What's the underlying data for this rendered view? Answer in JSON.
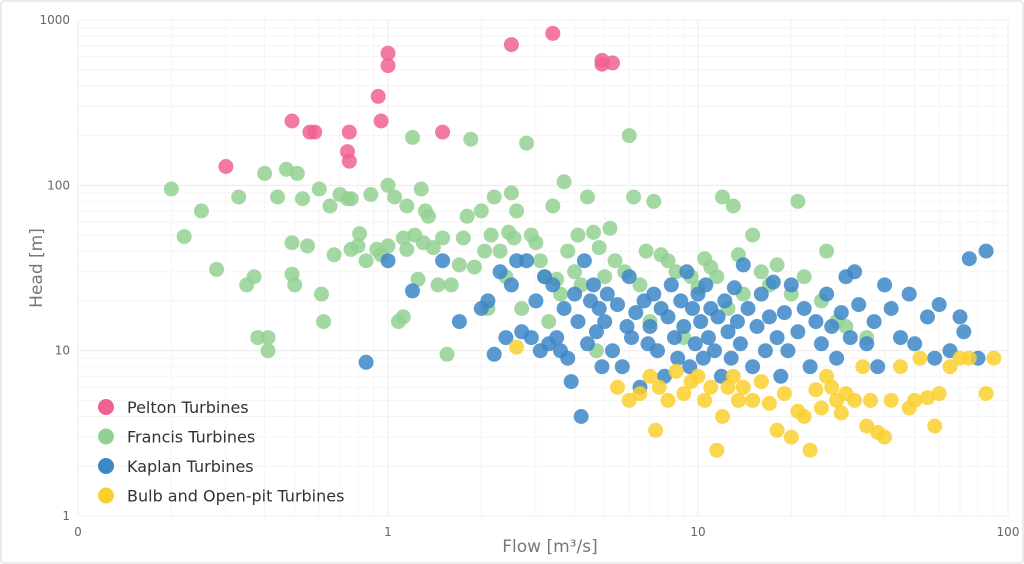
{
  "chart_data": {
    "type": "scatter",
    "xlabel": "Flow [m³/s]",
    "ylabel": "Head [m]",
    "x_scale": "log",
    "y_scale": "log",
    "xlim": [
      0.1,
      100
    ],
    "ylim": [
      1,
      1000
    ],
    "x_ticks": [
      {
        "value": 0.1,
        "label": "0"
      },
      {
        "value": 1,
        "label": "1"
      },
      {
        "value": 10,
        "label": "10"
      },
      {
        "value": 100,
        "label": "100"
      }
    ],
    "y_ticks": [
      {
        "value": 1,
        "label": "1"
      },
      {
        "value": 10,
        "label": "10"
      },
      {
        "value": 100,
        "label": "100"
      },
      {
        "value": 1000,
        "label": "1000"
      }
    ],
    "grid": true,
    "legend_position": "bottom-left",
    "series": [
      {
        "name": "Pelton Turbines",
        "color": "#f06292",
        "points": [
          [
            0.3,
            130
          ],
          [
            0.49,
            245
          ],
          [
            0.56,
            210
          ],
          [
            0.58,
            210
          ],
          [
            0.74,
            160
          ],
          [
            0.75,
            140
          ],
          [
            0.75,
            210
          ],
          [
            0.93,
            345
          ],
          [
            0.95,
            245
          ],
          [
            1.0,
            630
          ],
          [
            1.0,
            530
          ],
          [
            1.5,
            210
          ],
          [
            2.5,
            710
          ],
          [
            3.4,
            830
          ],
          [
            4.9,
            540
          ],
          [
            4.9,
            570
          ],
          [
            5.3,
            550
          ]
        ]
      },
      {
        "name": "Francis Turbines",
        "color": "#93d193",
        "points": [
          [
            0.2,
            95
          ],
          [
            0.22,
            49
          ],
          [
            0.25,
            70
          ],
          [
            0.28,
            31
          ],
          [
            0.33,
            85
          ],
          [
            0.35,
            25
          ],
          [
            0.37,
            28
          ],
          [
            0.38,
            12
          ],
          [
            0.4,
            118
          ],
          [
            0.41,
            10
          ],
          [
            0.41,
            12
          ],
          [
            0.44,
            85
          ],
          [
            0.47,
            125
          ],
          [
            0.49,
            29
          ],
          [
            0.49,
            45
          ],
          [
            0.5,
            25
          ],
          [
            0.51,
            118
          ],
          [
            0.53,
            83
          ],
          [
            0.55,
            43
          ],
          [
            0.6,
            95
          ],
          [
            0.61,
            22
          ],
          [
            0.62,
            15
          ],
          [
            0.65,
            75
          ],
          [
            0.67,
            38
          ],
          [
            0.7,
            88
          ],
          [
            0.74,
            83
          ],
          [
            0.76,
            83
          ],
          [
            0.76,
            41
          ],
          [
            0.8,
            43
          ],
          [
            0.81,
            51
          ],
          [
            0.85,
            35
          ],
          [
            0.88,
            88
          ],
          [
            0.92,
            41
          ],
          [
            0.95,
            38
          ],
          [
            1.0,
            100
          ],
          [
            1.0,
            43
          ],
          [
            1.05,
            85
          ],
          [
            1.08,
            15
          ],
          [
            1.12,
            16
          ],
          [
            1.12,
            48
          ],
          [
            1.15,
            75
          ],
          [
            1.15,
            41
          ],
          [
            1.2,
            195
          ],
          [
            1.22,
            50
          ],
          [
            1.25,
            27
          ],
          [
            1.28,
            95
          ],
          [
            1.3,
            45
          ],
          [
            1.32,
            70
          ],
          [
            1.35,
            65
          ],
          [
            1.4,
            42
          ],
          [
            1.45,
            25
          ],
          [
            1.5,
            48
          ],
          [
            1.55,
            9.5
          ],
          [
            1.6,
            25
          ],
          [
            1.7,
            33
          ],
          [
            1.75,
            48
          ],
          [
            1.8,
            65
          ],
          [
            1.85,
            190
          ],
          [
            1.9,
            32
          ],
          [
            2.0,
            70
          ],
          [
            2.05,
            40
          ],
          [
            2.1,
            18
          ],
          [
            2.15,
            50
          ],
          [
            2.2,
            85
          ],
          [
            2.3,
            40
          ],
          [
            2.4,
            28
          ],
          [
            2.45,
            52
          ],
          [
            2.5,
            90
          ],
          [
            2.55,
            48
          ],
          [
            2.6,
            70
          ],
          [
            2.7,
            18
          ],
          [
            2.8,
            180
          ],
          [
            2.9,
            50
          ],
          [
            3.0,
            45
          ],
          [
            3.1,
            35
          ],
          [
            3.2,
            28
          ],
          [
            3.3,
            15
          ],
          [
            3.4,
            75
          ],
          [
            3.5,
            27
          ],
          [
            3.6,
            22
          ],
          [
            3.7,
            105
          ],
          [
            3.8,
            40
          ],
          [
            4.0,
            30
          ],
          [
            4.1,
            50
          ],
          [
            4.2,
            25
          ],
          [
            4.4,
            85
          ],
          [
            4.6,
            52
          ],
          [
            4.7,
            10
          ],
          [
            4.8,
            42
          ],
          [
            5.0,
            28
          ],
          [
            5.2,
            55
          ],
          [
            5.4,
            35
          ],
          [
            5.8,
            30
          ],
          [
            6.0,
            200
          ],
          [
            6.2,
            85
          ],
          [
            6.5,
            25
          ],
          [
            6.8,
            40
          ],
          [
            7.0,
            15
          ],
          [
            7.2,
            80
          ],
          [
            7.6,
            38
          ],
          [
            8.0,
            35
          ],
          [
            8.5,
            30
          ],
          [
            9.0,
            12
          ],
          [
            9.5,
            28
          ],
          [
            10.0,
            24
          ],
          [
            10.5,
            36
          ],
          [
            11.0,
            32
          ],
          [
            11.5,
            28
          ],
          [
            12.0,
            85
          ],
          [
            12.5,
            18
          ],
          [
            13.0,
            75
          ],
          [
            13.5,
            38
          ],
          [
            14.0,
            22
          ],
          [
            15.0,
            50
          ],
          [
            16.0,
            30
          ],
          [
            17.0,
            25
          ],
          [
            18.0,
            33
          ],
          [
            20.0,
            22
          ],
          [
            21.0,
            80
          ],
          [
            22.0,
            28
          ],
          [
            25.0,
            20
          ],
          [
            26.0,
            40
          ],
          [
            28.0,
            15
          ],
          [
            30.0,
            14
          ],
          [
            35.0,
            12
          ]
        ]
      },
      {
        "name": "Kaplan Turbines",
        "color": "#3d87c7",
        "points": [
          [
            0.85,
            8.5
          ],
          [
            1.0,
            35
          ],
          [
            1.2,
            23
          ],
          [
            1.5,
            35
          ],
          [
            1.7,
            15
          ],
          [
            2.0,
            18
          ],
          [
            2.1,
            20
          ],
          [
            2.2,
            9.5
          ],
          [
            2.3,
            30
          ],
          [
            2.4,
            12
          ],
          [
            2.5,
            25
          ],
          [
            2.6,
            35
          ],
          [
            2.7,
            13
          ],
          [
            2.8,
            35
          ],
          [
            2.9,
            12
          ],
          [
            3.0,
            20
          ],
          [
            3.1,
            10
          ],
          [
            3.2,
            28
          ],
          [
            3.3,
            11
          ],
          [
            3.4,
            25
          ],
          [
            3.5,
            12
          ],
          [
            3.6,
            10
          ],
          [
            3.7,
            18
          ],
          [
            3.8,
            9
          ],
          [
            3.9,
            6.5
          ],
          [
            4.0,
            22
          ],
          [
            4.1,
            15
          ],
          [
            4.2,
            4
          ],
          [
            4.3,
            35
          ],
          [
            4.4,
            11
          ],
          [
            4.5,
            20
          ],
          [
            4.6,
            25
          ],
          [
            4.7,
            13
          ],
          [
            4.8,
            18
          ],
          [
            4.9,
            8
          ],
          [
            5.0,
            15
          ],
          [
            5.1,
            22
          ],
          [
            5.3,
            10
          ],
          [
            5.5,
            19
          ],
          [
            5.7,
            8
          ],
          [
            5.9,
            14
          ],
          [
            6.0,
            28
          ],
          [
            6.1,
            12
          ],
          [
            6.3,
            17
          ],
          [
            6.5,
            6
          ],
          [
            6.7,
            20
          ],
          [
            6.9,
            11
          ],
          [
            7.0,
            14
          ],
          [
            7.2,
            22
          ],
          [
            7.4,
            10
          ],
          [
            7.6,
            18
          ],
          [
            7.8,
            7
          ],
          [
            8.0,
            16
          ],
          [
            8.2,
            25
          ],
          [
            8.4,
            12
          ],
          [
            8.6,
            9
          ],
          [
            8.8,
            20
          ],
          [
            9.0,
            14
          ],
          [
            9.2,
            30
          ],
          [
            9.4,
            8
          ],
          [
            9.6,
            18
          ],
          [
            9.8,
            11
          ],
          [
            10.0,
            22
          ],
          [
            10.2,
            15
          ],
          [
            10.4,
            9
          ],
          [
            10.6,
            25
          ],
          [
            10.8,
            12
          ],
          [
            11.0,
            18
          ],
          [
            11.3,
            10
          ],
          [
            11.6,
            16
          ],
          [
            11.9,
            7
          ],
          [
            12.2,
            20
          ],
          [
            12.5,
            13
          ],
          [
            12.8,
            9
          ],
          [
            13.1,
            24
          ],
          [
            13.4,
            15
          ],
          [
            13.7,
            11
          ],
          [
            14.0,
            33
          ],
          [
            14.5,
            18
          ],
          [
            15.0,
            8
          ],
          [
            15.5,
            14
          ],
          [
            16.0,
            22
          ],
          [
            16.5,
            10
          ],
          [
            17.0,
            16
          ],
          [
            17.5,
            26
          ],
          [
            18.0,
            12
          ],
          [
            18.5,
            7
          ],
          [
            19.0,
            17
          ],
          [
            19.5,
            10
          ],
          [
            20.0,
            25
          ],
          [
            21.0,
            13
          ],
          [
            22.0,
            18
          ],
          [
            23.0,
            8
          ],
          [
            24.0,
            15
          ],
          [
            25.0,
            11
          ],
          [
            26.0,
            22
          ],
          [
            27.0,
            14
          ],
          [
            28.0,
            9
          ],
          [
            29.0,
            17
          ],
          [
            30.0,
            28
          ],
          [
            31.0,
            12
          ],
          [
            32.0,
            30
          ],
          [
            33.0,
            19
          ],
          [
            35.0,
            11
          ],
          [
            37.0,
            15
          ],
          [
            38.0,
            8
          ],
          [
            40.0,
            25
          ],
          [
            42.0,
            18
          ],
          [
            45.0,
            12
          ],
          [
            48.0,
            22
          ],
          [
            50.0,
            11
          ],
          [
            55.0,
            16
          ],
          [
            58.0,
            9
          ],
          [
            60.0,
            19
          ],
          [
            65.0,
            10
          ],
          [
            70.0,
            16
          ],
          [
            72.0,
            13
          ],
          [
            75.0,
            36
          ],
          [
            80.0,
            9
          ],
          [
            85.0,
            40
          ]
        ]
      },
      {
        "name": "Bulb and Open-pit Turbines",
        "color": "#fad02e",
        "points": [
          [
            2.6,
            10.5
          ],
          [
            5.5,
            6
          ],
          [
            6.0,
            5
          ],
          [
            6.5,
            5.5
          ],
          [
            7.0,
            7
          ],
          [
            7.3,
            3.3
          ],
          [
            7.5,
            6
          ],
          [
            8.0,
            5
          ],
          [
            8.5,
            7.5
          ],
          [
            9.0,
            5.5
          ],
          [
            9.5,
            6.5
          ],
          [
            10.0,
            7
          ],
          [
            10.5,
            5
          ],
          [
            11.0,
            6
          ],
          [
            11.5,
            2.5
          ],
          [
            12.0,
            4
          ],
          [
            12.5,
            6
          ],
          [
            13.0,
            7
          ],
          [
            13.5,
            5
          ],
          [
            14.0,
            6
          ],
          [
            15.0,
            5
          ],
          [
            16.0,
            6.5
          ],
          [
            17.0,
            4.8
          ],
          [
            18.0,
            3.3
          ],
          [
            19.0,
            5.5
          ],
          [
            20.0,
            3
          ],
          [
            21.0,
            4.3
          ],
          [
            22.0,
            4
          ],
          [
            23.0,
            2.5
          ],
          [
            24.0,
            5.8
          ],
          [
            25.0,
            4.5
          ],
          [
            26.0,
            7
          ],
          [
            27.0,
            6
          ],
          [
            28.0,
            5
          ],
          [
            29.0,
            4.2
          ],
          [
            30.0,
            5.5
          ],
          [
            32.0,
            5
          ],
          [
            34.0,
            8
          ],
          [
            35.0,
            3.5
          ],
          [
            36.0,
            5
          ],
          [
            38.0,
            3.2
          ],
          [
            40.0,
            3
          ],
          [
            42.0,
            5
          ],
          [
            45.0,
            8
          ],
          [
            48.0,
            4.5
          ],
          [
            50.0,
            5
          ],
          [
            52.0,
            9
          ],
          [
            55.0,
            5.2
          ],
          [
            58.0,
            3.5
          ],
          [
            60.0,
            5.5
          ],
          [
            65.0,
            8
          ],
          [
            70.0,
            9
          ],
          [
            75.0,
            9
          ],
          [
            85.0,
            5.5
          ],
          [
            90.0,
            9
          ]
        ]
      }
    ]
  }
}
